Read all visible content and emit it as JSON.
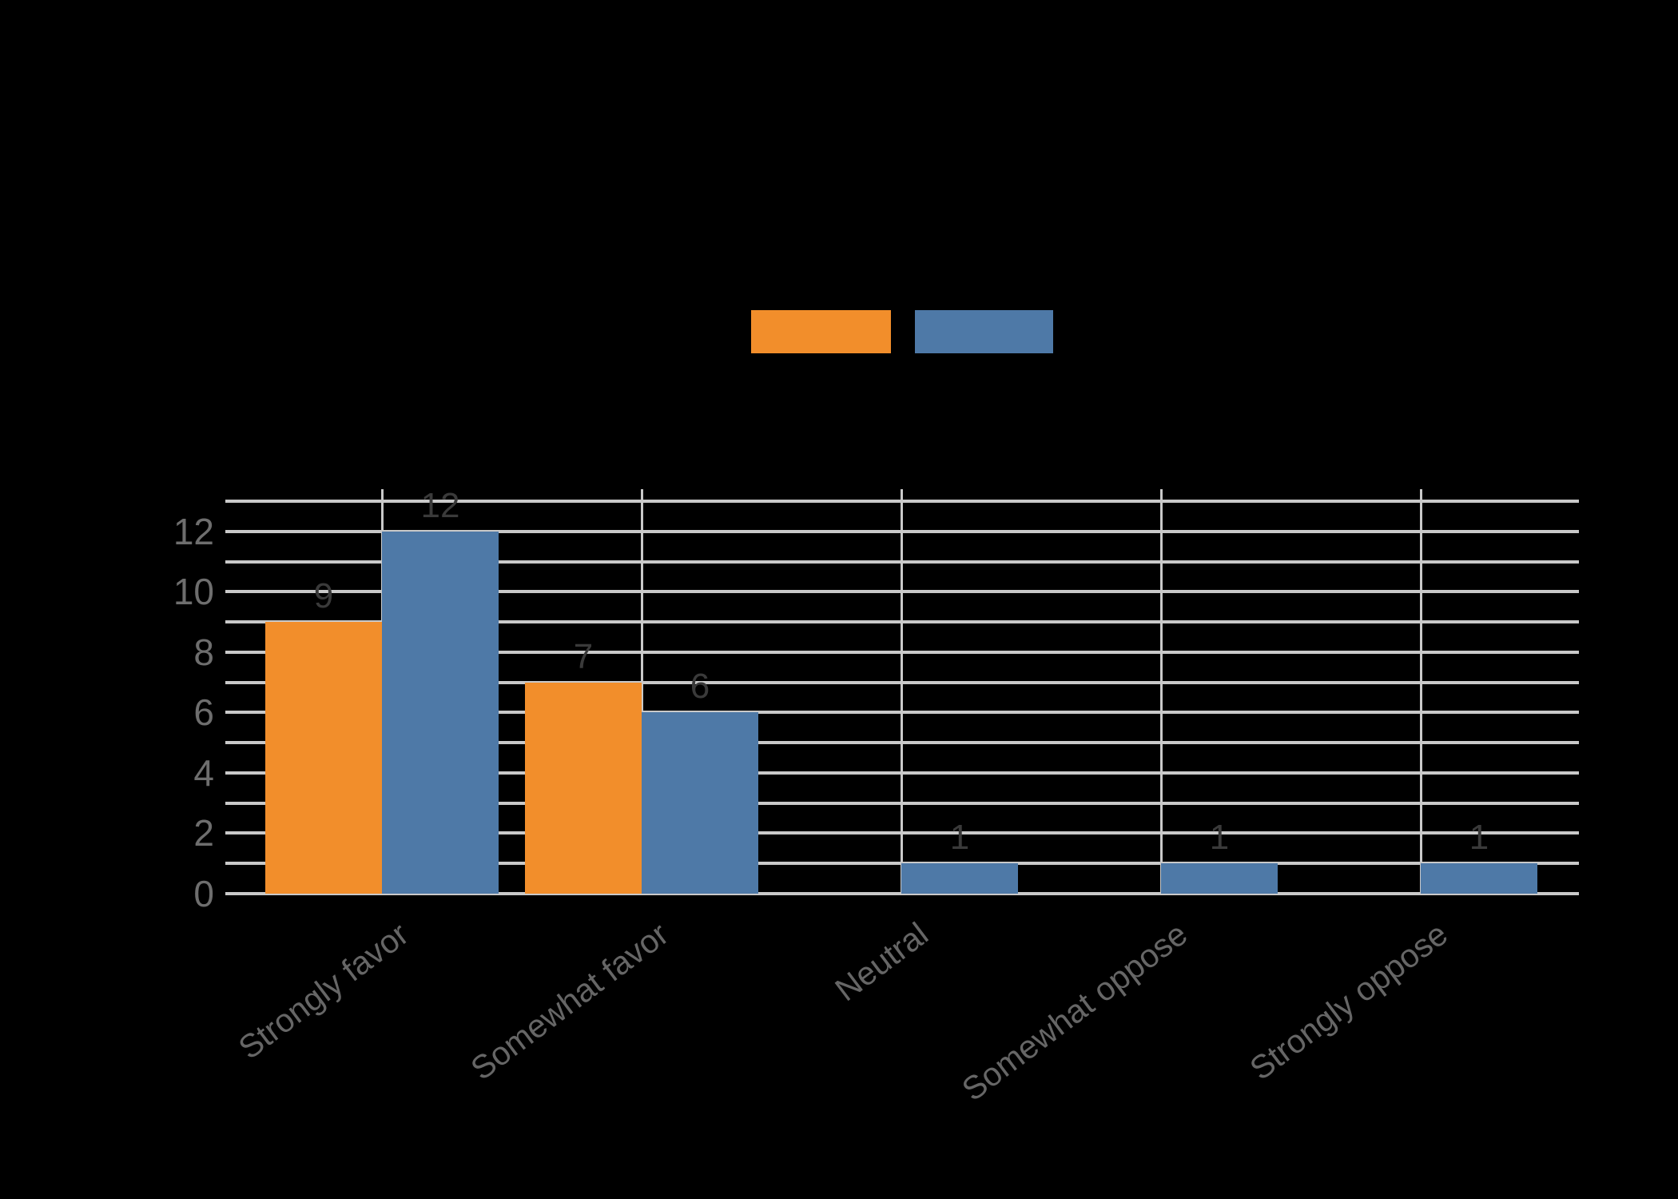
{
  "chart_data": {
    "type": "bar",
    "title": "",
    "categories": [
      "Strongly favor",
      "Somewhat favor",
      "Neutral",
      "Somewhat oppose",
      "Strongly oppose"
    ],
    "series": [
      {
        "label": "",
        "color": "#F28E2B",
        "values": [
          9,
          7,
          null,
          null,
          null
        ]
      },
      {
        "label": "",
        "color": "#4E79A7",
        "values": [
          12,
          6,
          1,
          1,
          1
        ]
      }
    ],
    "yticks": [
      0,
      2,
      4,
      6,
      8,
      10,
      12
    ],
    "ylim": [
      0,
      13.4
    ],
    "grid": "on",
    "grid_interval": 1,
    "gridline_count": 14,
    "bar_value_labels": true,
    "legend_position": "top-center",
    "xlabel": "",
    "ylabel": "",
    "colors": {
      "background": "#000000",
      "gridline": "#C9C9C9",
      "tick_label": "#6E6E6E",
      "category_label": "#666666",
      "value_label": "#3A3A3A"
    }
  }
}
